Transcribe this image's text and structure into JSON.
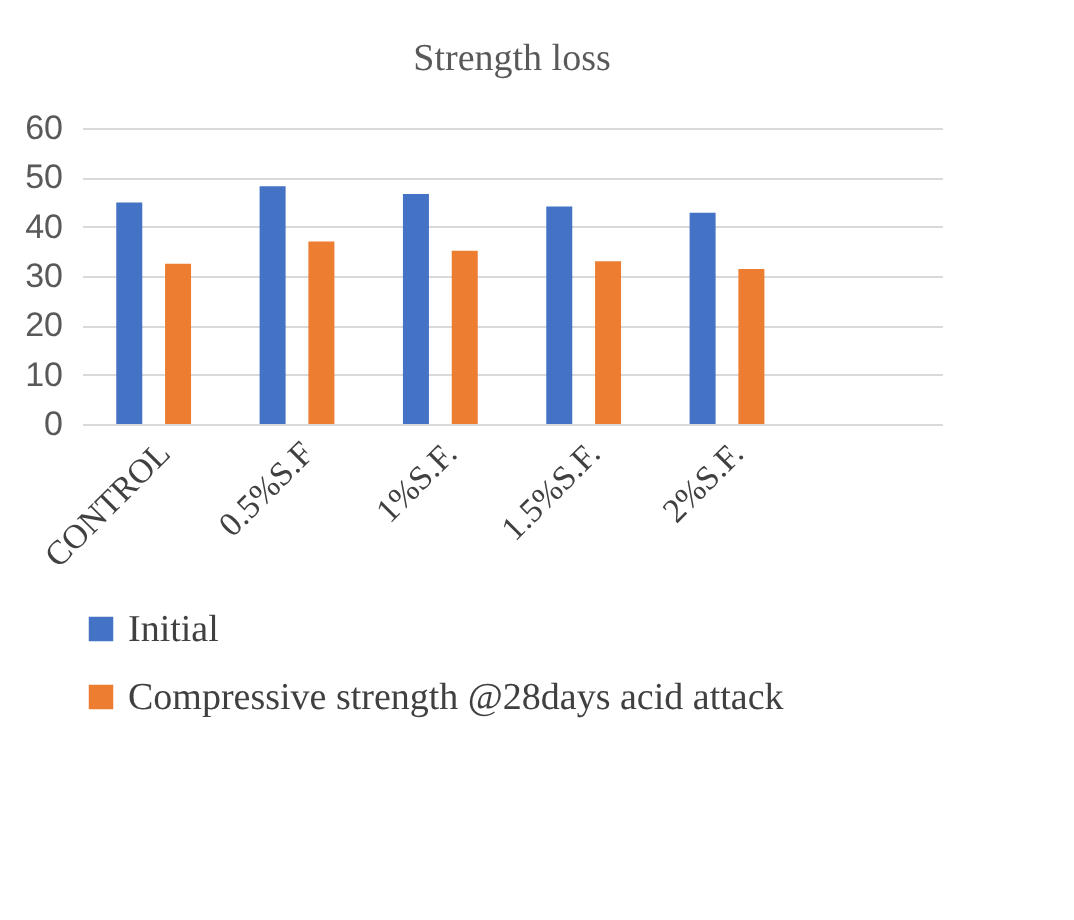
{
  "chart_data": {
    "type": "bar",
    "title": "Strength loss",
    "categories": [
      "CONTROL",
      "0.5%S.F",
      "1%S.F.",
      "1.5%S.F.",
      "2%S.F.",
      null
    ],
    "series": [
      {
        "name": "Initial",
        "color": "#4472c4",
        "values": [
          44.9,
          48.2,
          46.6,
          44.1,
          42.8,
          null
        ]
      },
      {
        "name": "Compressive strength @28days acid attack",
        "color": "#ed7d31",
        "values": [
          32.5,
          37.0,
          35.1,
          33.0,
          31.4,
          null
        ]
      }
    ],
    "ylim": [
      0,
      60
    ],
    "yticks": [
      0,
      10,
      20,
      30,
      40,
      50,
      60
    ],
    "grid": "y",
    "legend": "bottom"
  }
}
